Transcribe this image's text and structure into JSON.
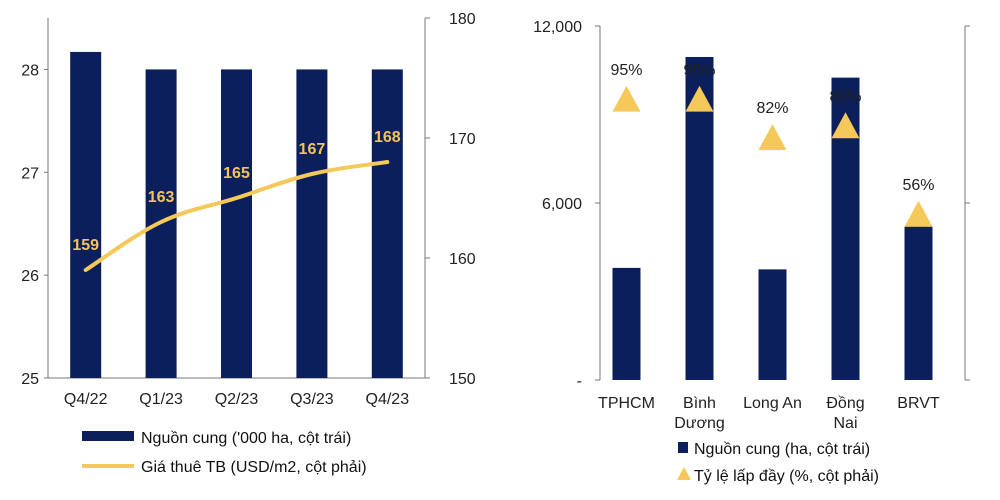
{
  "colors": {
    "navy": "#0b1f5c",
    "gold": "#f5c85a",
    "axis": "#777777",
    "label_gold": "#f2c45a"
  },
  "chart_data": [
    {
      "type": "bar+line",
      "categories": [
        "Q4/22",
        "Q1/23",
        "Q2/23",
        "Q3/23",
        "Q4/23"
      ],
      "series": [
        {
          "name": "Nguồn cung ('000 ha, cột trái)",
          "type": "bar",
          "axis": "left",
          "values": [
            28.17,
            28.0,
            28.0,
            28.0,
            28.0
          ]
        },
        {
          "name": "Giá thuê TB (USD/m2, cột phải)",
          "type": "line",
          "axis": "right",
          "values": [
            159,
            163,
            165,
            167,
            168
          ],
          "labels": [
            "159",
            "163",
            "165",
            "167",
            "168"
          ]
        }
      ],
      "yleft": {
        "min": 25,
        "max": 28.5,
        "ticks": [
          25,
          26,
          27,
          28
        ],
        "tick_labels": [
          "25",
          "26",
          "27",
          "28"
        ]
      },
      "yright": {
        "min": 150,
        "max": 180,
        "ticks": [
          150,
          160,
          170,
          180
        ],
        "tick_labels": [
          "150",
          "160",
          "170",
          "180"
        ]
      },
      "legend": "bottom"
    },
    {
      "type": "bar+scatter",
      "categories": [
        [
          "TPHCM"
        ],
        [
          "Bình",
          "Dương"
        ],
        [
          "Long An"
        ],
        [
          "Đồng",
          "Nai"
        ],
        [
          "BRVT"
        ]
      ],
      "series": [
        {
          "name": "Nguồn cung (ha, cột trái)",
          "type": "bar",
          "axis": "left",
          "values": [
            3800,
            10950,
            3750,
            10250,
            5200
          ]
        },
        {
          "name": "Tỷ lệ lấp đầy (%, cột phải)",
          "type": "triangle",
          "axis": "right",
          "values": [
            95,
            95,
            82,
            86,
            56
          ],
          "labels": [
            "95%",
            "95%",
            "82%",
            "86%",
            "56%"
          ]
        }
      ],
      "yleft": {
        "min": 0,
        "max": 12000,
        "ticks": [
          0,
          6000,
          12000
        ],
        "tick_labels": [
          "-",
          "6,000",
          "12,000"
        ]
      },
      "yright": {
        "min": 0,
        "max": 120,
        "ticks": [
          0,
          60,
          120
        ],
        "tick_labels": [
          "",
          "",
          ""
        ]
      },
      "legend": "bottom"
    }
  ]
}
